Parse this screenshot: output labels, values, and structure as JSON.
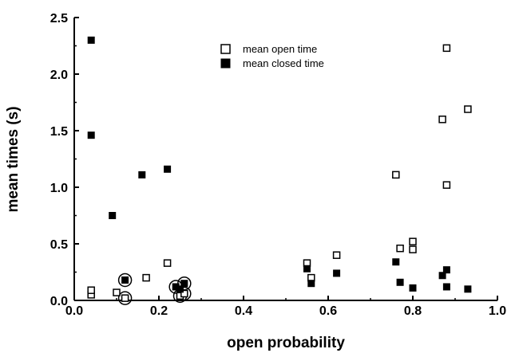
{
  "chart_data": {
    "type": "scatter",
    "xlabel": "open probability",
    "ylabel": "mean times (s)",
    "xlim": [
      0,
      1
    ],
    "ylim": [
      0,
      2.5
    ],
    "x_ticks": [
      "0.0",
      "0.2",
      "0.4",
      "0.6",
      "0.8",
      "1.0"
    ],
    "y_ticks": [
      "0.0",
      "0.5",
      "1.0",
      "1.5",
      "2.0",
      "2.5"
    ],
    "legend": {
      "placement": "top-center"
    },
    "series": [
      {
        "name": "mean open time",
        "marker": "open-square",
        "color": "#000000",
        "points": [
          {
            "x": 0.04,
            "y": 0.05
          },
          {
            "x": 0.04,
            "y": 0.09
          },
          {
            "x": 0.1,
            "y": 0.07
          },
          {
            "x": 0.12,
            "y": 0.02
          },
          {
            "x": 0.17,
            "y": 0.2
          },
          {
            "x": 0.22,
            "y": 0.33
          },
          {
            "x": 0.25,
            "y": 0.04
          },
          {
            "x": 0.26,
            "y": 0.06
          },
          {
            "x": 0.55,
            "y": 0.33
          },
          {
            "x": 0.56,
            "y": 0.2
          },
          {
            "x": 0.62,
            "y": 0.4
          },
          {
            "x": 0.76,
            "y": 1.11
          },
          {
            "x": 0.77,
            "y": 0.46
          },
          {
            "x": 0.8,
            "y": 0.52
          },
          {
            "x": 0.8,
            "y": 0.45
          },
          {
            "x": 0.87,
            "y": 1.6
          },
          {
            "x": 0.88,
            "y": 2.23
          },
          {
            "x": 0.88,
            "y": 1.02
          },
          {
            "x": 0.93,
            "y": 1.69
          }
        ]
      },
      {
        "name": "mean closed time",
        "marker": "filled-square",
        "color": "#000000",
        "points": [
          {
            "x": 0.04,
            "y": 2.3
          },
          {
            "x": 0.04,
            "y": 1.46
          },
          {
            "x": 0.09,
            "y": 0.75
          },
          {
            "x": 0.12,
            "y": 0.18
          },
          {
            "x": 0.16,
            "y": 1.11
          },
          {
            "x": 0.22,
            "y": 1.16
          },
          {
            "x": 0.24,
            "y": 0.12
          },
          {
            "x": 0.25,
            "y": 0.1
          },
          {
            "x": 0.26,
            "y": 0.15
          },
          {
            "x": 0.55,
            "y": 0.28
          },
          {
            "x": 0.56,
            "y": 0.15
          },
          {
            "x": 0.62,
            "y": 0.24
          },
          {
            "x": 0.76,
            "y": 0.34
          },
          {
            "x": 0.77,
            "y": 0.16
          },
          {
            "x": 0.8,
            "y": 0.11
          },
          {
            "x": 0.87,
            "y": 0.22
          },
          {
            "x": 0.88,
            "y": 0.27
          },
          {
            "x": 0.88,
            "y": 0.12
          },
          {
            "x": 0.93,
            "y": 0.1
          }
        ]
      }
    ],
    "circled_points": [
      {
        "x": 0.12,
        "y": 0.02
      },
      {
        "x": 0.12,
        "y": 0.18
      },
      {
        "x": 0.24,
        "y": 0.12
      },
      {
        "x": 0.25,
        "y": 0.04
      },
      {
        "x": 0.26,
        "y": 0.06
      },
      {
        "x": 0.26,
        "y": 0.15
      }
    ]
  }
}
